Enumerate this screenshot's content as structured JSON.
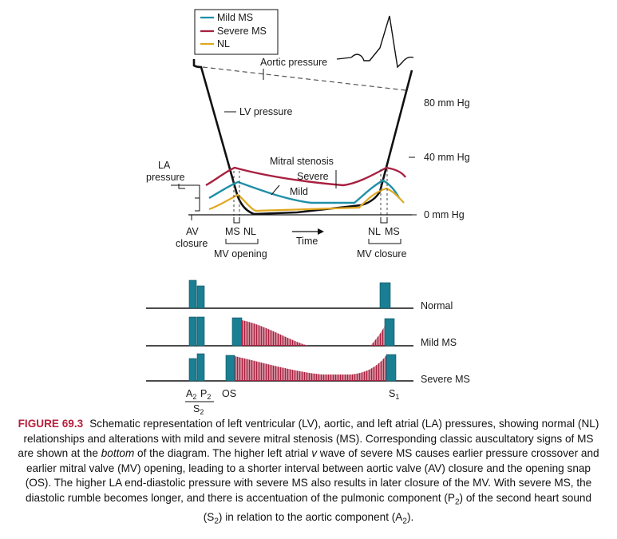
{
  "colors": {
    "mild_ms": "#1f8fa8",
    "severe_ms": "#a8203f",
    "nl": "#e0a71f",
    "sound_block": "#1a7f93",
    "rumble": "#a8203f",
    "line": "#111111"
  },
  "legend": {
    "mild": "Mild MS",
    "severe": "Severe MS",
    "nl": "NL"
  },
  "labels": {
    "aortic_pressure": "Aortic pressure",
    "lv_pressure": "LV pressure",
    "mitral_stenosis": "Mitral stenosis",
    "severe": "Severe",
    "mild": "Mild",
    "la_line1": "LA",
    "la_line2": "pressure",
    "av_line1": "AV",
    "av_line2": "closure",
    "ms_left": "MS",
    "nl_left": "NL",
    "mv_opening": "MV opening",
    "time": "Time",
    "nl_right": "NL",
    "ms_right": "MS",
    "mv_closure": "MV closure"
  },
  "pressure_scale": {
    "p80": "80 mm Hg",
    "p40": "40 mm Hg",
    "p0": "0 mm Hg"
  },
  "phono": {
    "rows": [
      "Normal",
      "Mild MS",
      "Severe MS"
    ],
    "a2": "A",
    "a2_sub": "2",
    "p2": "P",
    "p2_sub": "2",
    "s2": "S",
    "s2_sub": "2",
    "os": "OS",
    "s1": "S",
    "s1_sub": "1"
  },
  "caption": {
    "figure_number": "FIGURE 69.3",
    "t1": "Schematic representation of left ventricular (LV), aortic, and left atrial (LA) pressures, showing normal (NL) relationships and alterations with mild and severe mitral stenosis (MS). Corresponding classic auscultatory signs of MS are shown at the ",
    "t2": "bottom",
    "t3": " of the diagram. The higher left atrial ",
    "t4": "v",
    "t5": " wave of severe MS causes earlier pressure crossover and earlier mitral valve (MV) opening, leading to a shorter interval between aortic valve (AV) closure and the opening snap (OS). The higher LA end-diastolic pressure with severe MS also results in later closure of the MV. With severe MS, the diastolic rumble becomes longer, and there is accentuation of the pulmonic component (P",
    "t6": "2",
    "t7": ") of the second heart sound (S",
    "t8": "2",
    "t9": ") in relation to the aortic component (A",
    "t10": "2",
    "t11": ")."
  }
}
